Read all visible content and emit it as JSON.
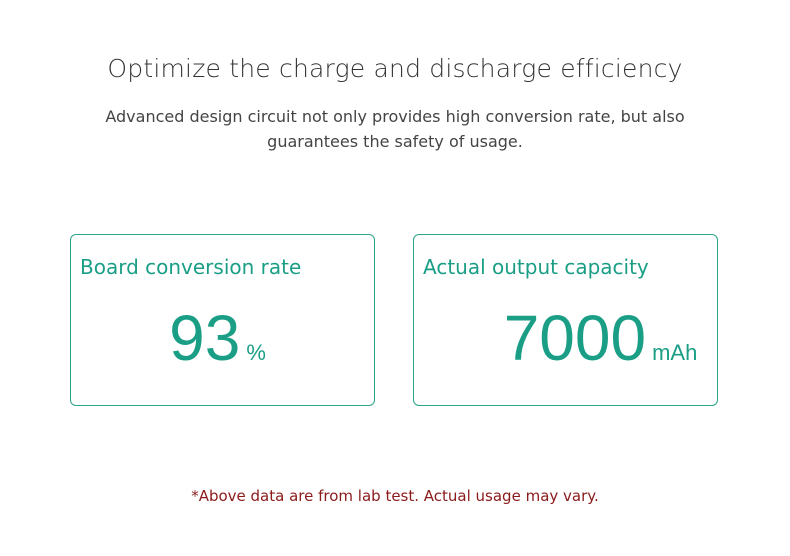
{
  "header": {
    "title": "Optimize the charge and discharge efficiency",
    "subtitle_lines": [
      "Advanced design circuit not only provides high conversion rate, but also",
      "guarantees the safety of usage."
    ]
  },
  "cards": [
    {
      "label": "Board conversion rate",
      "value": 93,
      "unit": "%"
    },
    {
      "label": "Actual output capacity",
      "value": 7000,
      "unit": "mAh"
    }
  ],
  "footnote": "*Above data are from lab test. Actual usage may vary."
}
